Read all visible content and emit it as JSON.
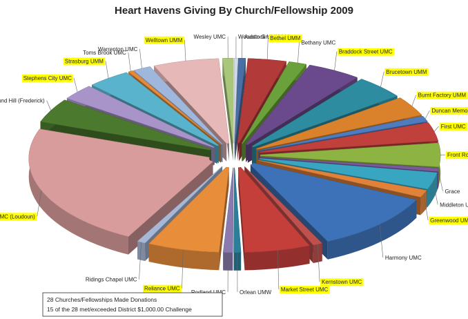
{
  "chart_data": {
    "type": "pie",
    "style": "exploded-3d",
    "title": "Heart Havens Giving By Church/Fellowship 2009",
    "highlight_color": "#ffff00",
    "slices": [
      {
        "label": "Woodstock UMM",
        "value": 0.3,
        "color": "#cfd9ea",
        "highlight": false
      },
      {
        "label": "Austin Grove UMC",
        "value": 0.6,
        "color": "#4a6fa5",
        "highlight": false
      },
      {
        "label": "Bethel UMM",
        "value": 3.2,
        "color": "#b23a38",
        "highlight": true
      },
      {
        "label": "Bethany UMC",
        "value": 1.5,
        "color": "#6aa13a",
        "highlight": false
      },
      {
        "label": "Braddock Street UMC",
        "value": 4.5,
        "color": "#6a4a8c",
        "highlight": true
      },
      {
        "label": "Brucetown UMM",
        "value": 4.2,
        "color": "#2e8ca0",
        "highlight": true
      },
      {
        "label": "Burnt Factory UMM",
        "value": 3.5,
        "color": "#d9822b",
        "highlight": true
      },
      {
        "label": "Duncan Memorial",
        "value": 1.0,
        "color": "#4f7cbf",
        "highlight": true
      },
      {
        "label": "First UMC",
        "value": 3.3,
        "color": "#c0403c",
        "highlight": true
      },
      {
        "label": "Front Royal UMC",
        "value": 4.2,
        "color": "#8db443",
        "highlight": true
      },
      {
        "label": "Grace",
        "value": 0.6,
        "color": "#7a5a9c",
        "highlight": false
      },
      {
        "label": "Middleton UMC",
        "value": 3.0,
        "color": "#38a6c0",
        "highlight": false
      },
      {
        "label": "Greenwood UMC",
        "value": 1.3,
        "color": "#e0823a",
        "highlight": true
      },
      {
        "label": "Harmony UMC",
        "value": 10.5,
        "color": "#3d72b8",
        "highlight": false
      },
      {
        "label": "Kernstown UMC",
        "value": 0.8,
        "color": "#c0504d",
        "highlight": true
      },
      {
        "label": "Market Street UMC",
        "value": 5.5,
        "color": "#c43e3a",
        "highlight": true
      },
      {
        "label": "Orlean UMW",
        "value": 0.6,
        "color": "#2c7f99",
        "highlight": false
      },
      {
        "label": "Redland UMC",
        "value": 0.8,
        "color": "#8a7ab0",
        "highlight": false
      },
      {
        "label": "Reliance UMC",
        "value": 6.0,
        "color": "#e88d3a",
        "highlight": true
      },
      {
        "label": "Ridings Chapel UMC",
        "value": 0.7,
        "color": "#a7b8d6",
        "highlight": false
      },
      {
        "label": "Round Hill UMC (Loudoun)",
        "value": 22.0,
        "color": "#d99c9c",
        "highlight": true
      },
      {
        "label": "Round Hill (Frederick)",
        "value": 4.3,
        "color": "#4b7a2e",
        "highlight": false
      },
      {
        "label": "Stephens City UMC",
        "value": 2.8,
        "color": "#a894c8",
        "highlight": true
      },
      {
        "label": "Strasburg UMM",
        "value": 3.6,
        "color": "#5ab3cc",
        "highlight": true
      },
      {
        "label": "Toms Brook UMC",
        "value": 0.4,
        "color": "#e38b3c",
        "highlight": false
      },
      {
        "label": "Warrenton UMC",
        "value": 1.5,
        "color": "#9fb6dd",
        "highlight": false
      },
      {
        "label": "Welltown UMM",
        "value": 5.5,
        "color": "#e6b8b8",
        "highlight": true
      },
      {
        "label": "Wesley UMC",
        "value": 0.9,
        "color": "#a9c77a",
        "highlight": false
      }
    ],
    "note_lines": [
      "28 Churches/Fellowships Made Donations",
      "15 of the 28 met/exceeded District $1,000.00 Challenge"
    ]
  }
}
